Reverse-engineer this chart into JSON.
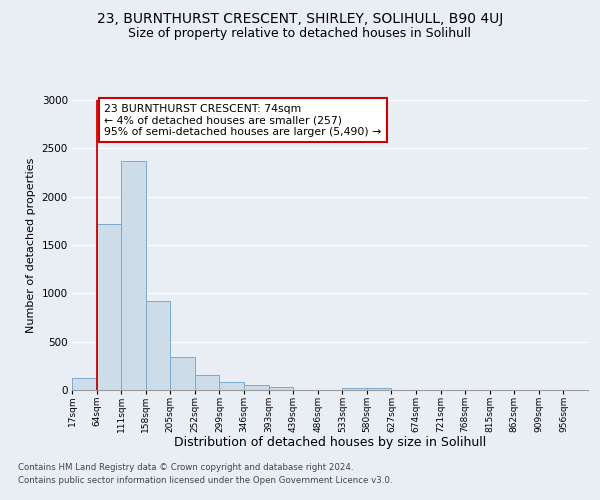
{
  "title": "23, BURNTHURST CRESCENT, SHIRLEY, SOLIHULL, B90 4UJ",
  "subtitle": "Size of property relative to detached houses in Solihull",
  "xlabel": "Distribution of detached houses by size in Solihull",
  "ylabel": "Number of detached properties",
  "bin_labels": [
    "17sqm",
    "64sqm",
    "111sqm",
    "158sqm",
    "205sqm",
    "252sqm",
    "299sqm",
    "346sqm",
    "393sqm",
    "439sqm",
    "486sqm",
    "533sqm",
    "580sqm",
    "627sqm",
    "674sqm",
    "721sqm",
    "768sqm",
    "815sqm",
    "862sqm",
    "909sqm",
    "956sqm"
  ],
  "bar_values": [
    120,
    1720,
    2370,
    920,
    340,
    155,
    80,
    55,
    30,
    0,
    0,
    25,
    25,
    0,
    0,
    0,
    0,
    0,
    0,
    0,
    0
  ],
  "bar_color": "#ccdce8",
  "bar_edge_color": "#7aaacc",
  "red_line_x": 1,
  "ylim": [
    0,
    3000
  ],
  "yticks": [
    0,
    500,
    1000,
    1500,
    2000,
    2500,
    3000
  ],
  "annotation_text": "23 BURNTHURST CRESCENT: 74sqm\n← 4% of detached houses are smaller (257)\n95% of semi-detached houses are larger (5,490) →",
  "annotation_box_color": "#ffffff",
  "annotation_box_edge": "#cc0000",
  "footnote1": "Contains HM Land Registry data © Crown copyright and database right 2024.",
  "footnote2": "Contains public sector information licensed under the Open Government Licence v3.0.",
  "bg_color": "#e8eef4",
  "plot_bg_color": "#e8eef4",
  "grid_color": "#ffffff",
  "title_fontsize": 10,
  "subtitle_fontsize": 9,
  "bar_width": 1.0
}
